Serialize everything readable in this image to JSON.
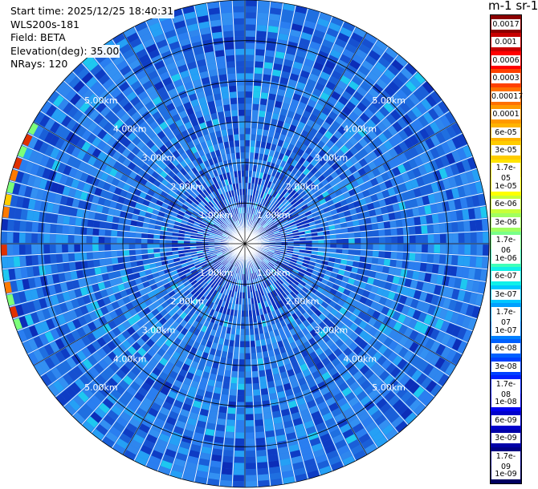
{
  "info": {
    "start_time": "Start time: 2025/12/25 18:40:31",
    "instrument": "WLS200s-181",
    "field": "Field: BETA",
    "elevation": "Elevation(deg): 35.00",
    "nrays": "NRays: 120"
  },
  "colorbar": {
    "title": "m-1 sr-1",
    "labels": [
      "0.0017",
      "0.001",
      "0.0006",
      "0.0003",
      "0.00017",
      "0.0001",
      "6e-05",
      "3e-05",
      "1.7e-05",
      "1e-05",
      "6e-06",
      "3e-06",
      "1.7e-06",
      "1e-06",
      "6e-07",
      "3e-07",
      "1.7e-07",
      "1e-07",
      "6e-08",
      "3e-08",
      "1.7e-08",
      "1e-08",
      "6e-09",
      "3e-09",
      "1.7e-09",
      "1e-09"
    ],
    "colors": [
      "#8b0000",
      "#c80000",
      "#ff0000",
      "#ff4000",
      "#ff7000",
      "#ff9900",
      "#ffb300",
      "#ffcc00",
      "#ffe400",
      "#ffff00",
      "#c8ff38",
      "#a0ff60",
      "#78ff88",
      "#40ffb8",
      "#10f0e8",
      "#00c8ff",
      "#00a0ff",
      "#0080ff",
      "#0060ff",
      "#0040ff",
      "#0020ff",
      "#0000f0",
      "#0000cc",
      "#0000a8",
      "#000084",
      "#000060"
    ]
  },
  "chart_data": {
    "type": "heatmap",
    "projection": "polar-ppi",
    "nrays": 120,
    "elevation_deg": 35.0,
    "max_range_km": 6.0,
    "range_rings_km": [
      1,
      2,
      3,
      4,
      5,
      6
    ],
    "ring_labels": [
      "1.00km",
      "2.00km",
      "3.00km",
      "4.00km",
      "5.00km"
    ],
    "dominant_value": "3e-08",
    "colormap": "jet",
    "grid": true
  }
}
